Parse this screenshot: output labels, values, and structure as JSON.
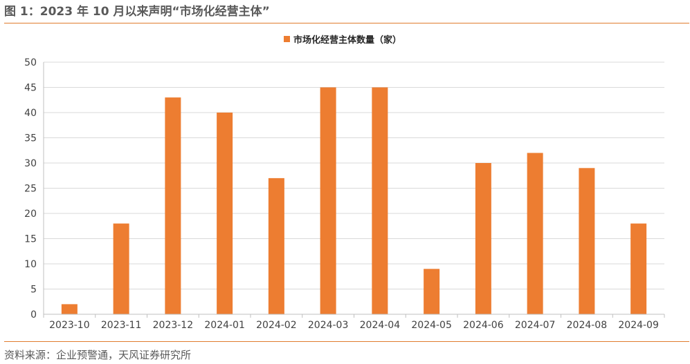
{
  "figure": {
    "title": "图 1：2023 年 10 月以来声明“市场化经营主体”",
    "source": "资料来源：企业预警通，天风证券研究所"
  },
  "colors": {
    "bar": "#ed7d31",
    "rule": "#e07b2d",
    "grid": "#d9d9d9",
    "axis": "#bfbfbf"
  },
  "chart_data": {
    "type": "bar",
    "categories": [
      "2023-10",
      "2023-11",
      "2023-12",
      "2024-01",
      "2024-02",
      "2024-03",
      "2024-04",
      "2024-05",
      "2024-06",
      "2024-07",
      "2024-08",
      "2024-09"
    ],
    "series": [
      {
        "name": "市场化经营主体数量（家）",
        "values": [
          2,
          18,
          43,
          40,
          27,
          45,
          45,
          9,
          30,
          32,
          29,
          18
        ]
      }
    ],
    "ylim": [
      0,
      50
    ],
    "yticks": [
      0,
      5,
      10,
      15,
      20,
      25,
      30,
      35,
      40,
      45,
      50
    ],
    "grid": true,
    "legend": "top-center"
  }
}
